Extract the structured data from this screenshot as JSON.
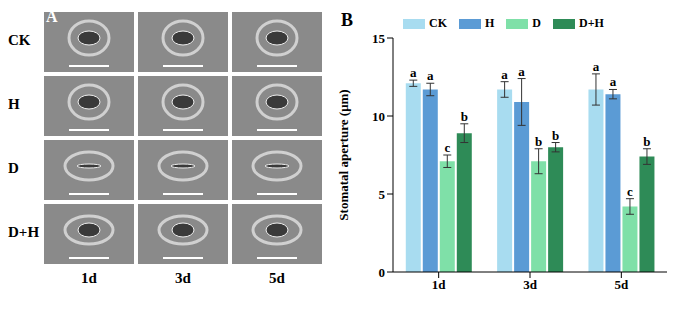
{
  "panel_a": {
    "label": "A",
    "rows": [
      "CK",
      "H",
      "D",
      "D+H"
    ],
    "columns": [
      "1d",
      "3d",
      "5d"
    ]
  },
  "chart_data": {
    "type": "bar",
    "panel_label": "B",
    "categories": [
      "1d",
      "3d",
      "5d"
    ],
    "y_label": "Stomatal aperture (μm)",
    "ylim": [
      0,
      15
    ],
    "yticks": [
      0,
      5,
      10,
      15
    ],
    "legend": "top",
    "grid": false,
    "series": [
      {
        "name": "CK",
        "color": "#a8dcf0",
        "values": [
          12.1,
          11.7,
          11.7
        ],
        "errors": [
          0.2,
          0.5,
          1.0
        ],
        "letters": [
          "a",
          "a",
          "a"
        ]
      },
      {
        "name": "H",
        "color": "#5b9bd5",
        "values": [
          11.7,
          10.9,
          11.4
        ],
        "errors": [
          0.4,
          1.5,
          0.3
        ],
        "letters": [
          "a",
          "a",
          "a"
        ]
      },
      {
        "name": "D",
        "color": "#7fe0a8",
        "values": [
          7.1,
          7.1,
          4.2
        ],
        "errors": [
          0.4,
          0.8,
          0.5
        ],
        "letters": [
          "c",
          "b",
          "c"
        ]
      },
      {
        "name": "D+H",
        "color": "#2e8b57",
        "values": [
          8.9,
          8.0,
          7.4
        ],
        "errors": [
          0.6,
          0.3,
          0.5
        ],
        "letters": [
          "b",
          "b",
          "b"
        ]
      }
    ]
  }
}
